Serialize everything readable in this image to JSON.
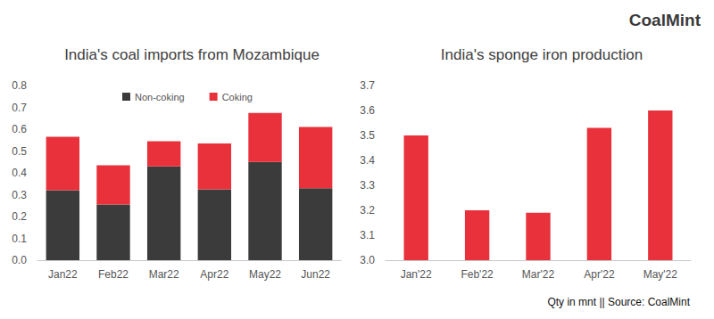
{
  "logo": "CoalMint",
  "note": "Qty in mnt || Source: CoalMint",
  "chart_data": [
    {
      "type": "bar",
      "title": "India's coal imports from Mozambique",
      "categories": [
        "Jan22",
        "Feb22",
        "Mar22",
        "Apr22",
        "May22",
        "Jun22"
      ],
      "series": [
        {
          "name": "Non-coking",
          "color": "#3b3b3b",
          "values": [
            0.32,
            0.255,
            0.43,
            0.325,
            0.45,
            0.33
          ]
        },
        {
          "name": "Coking",
          "color": "#e8313a",
          "values": [
            0.245,
            0.18,
            0.115,
            0.21,
            0.225,
            0.28
          ]
        }
      ],
      "stacked": true,
      "legend": "top",
      "grid": false,
      "ylim": [
        0,
        0.8
      ],
      "yticks": [
        {
          "value": 0,
          "label": "0.0"
        },
        0.1,
        0.2,
        0.3,
        0.4,
        0.5,
        0.6,
        0.7,
        0.8
      ]
    },
    {
      "type": "bar",
      "title": "India's sponge iron production",
      "categories": [
        "Jan'22",
        "Feb'22",
        "Mar'22",
        "Apr'22",
        "May'22"
      ],
      "values": [
        3.5,
        3.2,
        3.19,
        3.53,
        3.6
      ],
      "color": "#e8313a",
      "grid": false,
      "ylim": [
        3.0,
        3.7
      ],
      "yticks": [
        {
          "value": 3.0,
          "label": "3.0"
        },
        3.1,
        3.2,
        3.3,
        3.4,
        3.5,
        3.6,
        3.7
      ]
    }
  ]
}
